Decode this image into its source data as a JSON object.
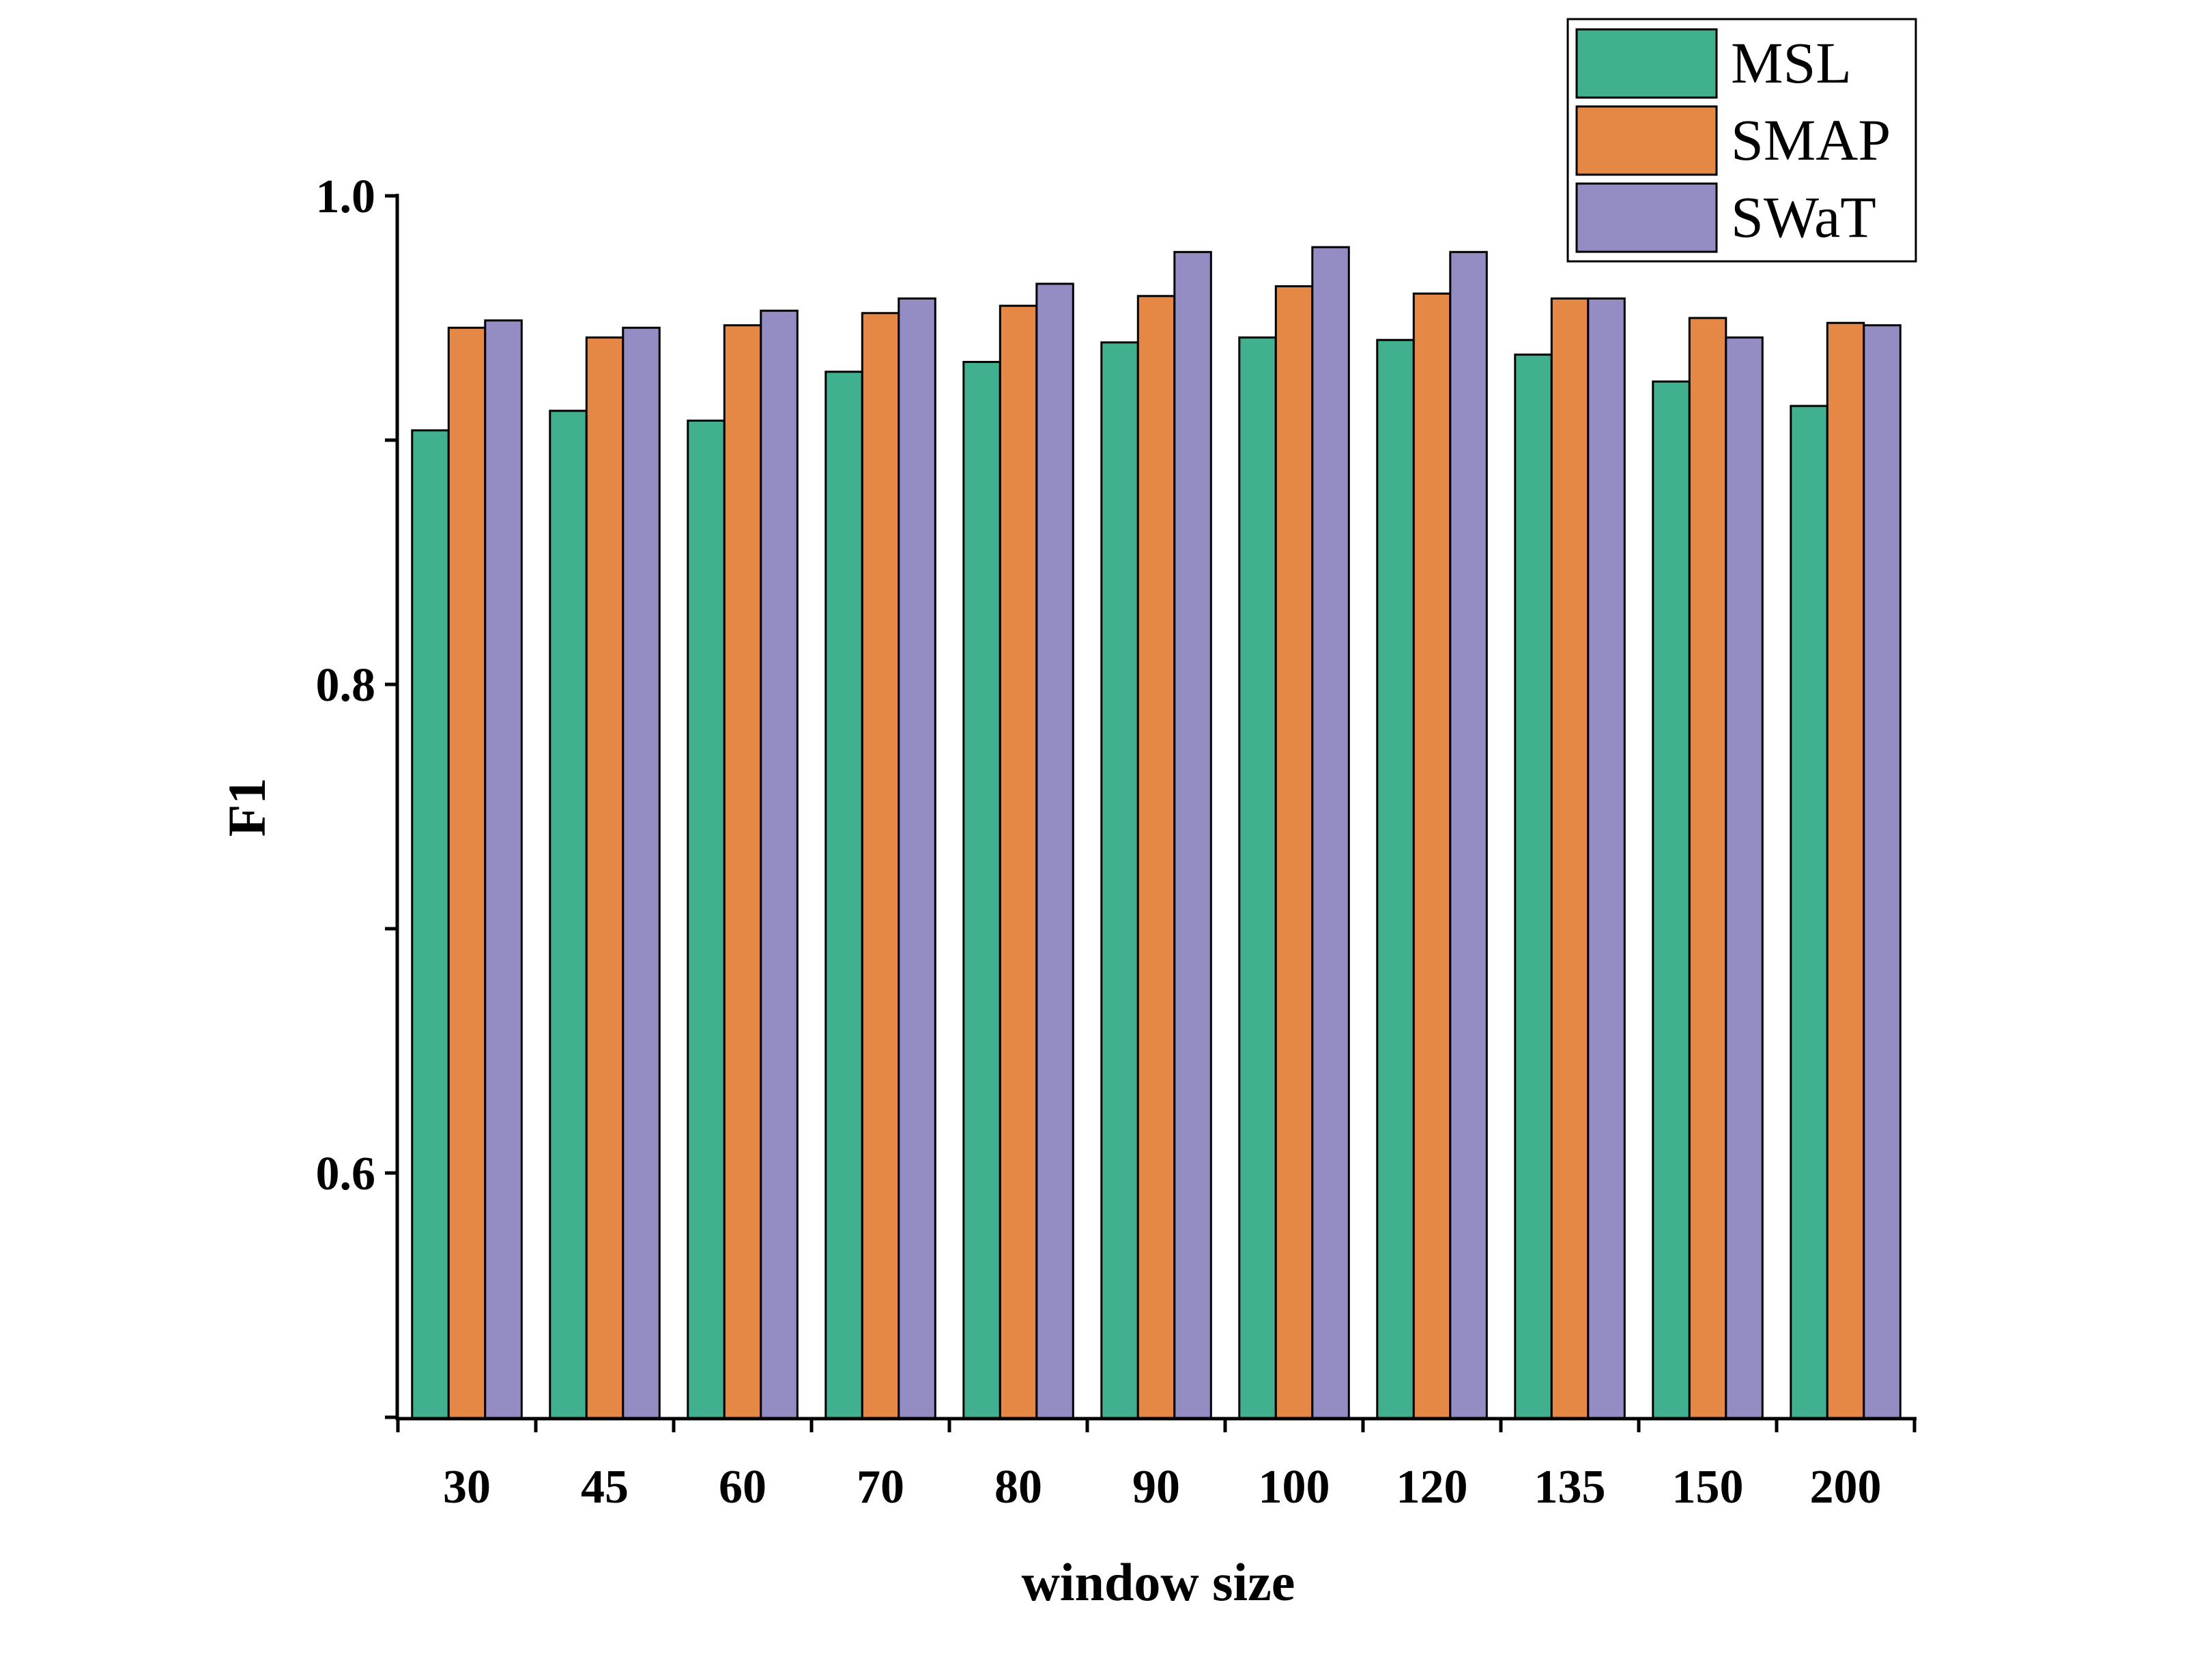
{
  "chart_data": {
    "type": "bar",
    "title": "",
    "xlabel": "window size",
    "ylabel": "F1",
    "categories": [
      "30",
      "45",
      "60",
      "70",
      "80",
      "90",
      "100",
      "120",
      "135",
      "150",
      "200"
    ],
    "series": [
      {
        "name": "MSL",
        "color": "#41B08F",
        "values": [
          0.904,
          0.912,
          0.908,
          0.928,
          0.932,
          0.94,
          0.942,
          0.941,
          0.935,
          0.924,
          0.914
        ]
      },
      {
        "name": "SMAP",
        "color": "#E58745",
        "values": [
          0.946,
          0.942,
          0.947,
          0.952,
          0.955,
          0.959,
          0.963,
          0.96,
          0.958,
          0.95,
          0.948
        ]
      },
      {
        "name": "SWaT",
        "color": "#938DC4",
        "values": [
          0.949,
          0.946,
          0.953,
          0.958,
          0.964,
          0.977,
          0.979,
          0.977,
          0.958,
          0.942,
          0.947
        ]
      }
    ],
    "ylim": [
      0.5,
      1.0
    ],
    "yticks": [
      "0.6",
      "0.8",
      "1.0"
    ],
    "ytick_values": [
      0.6,
      0.8,
      1.0
    ],
    "yminor_ticks": [
      0.5,
      0.7,
      0.9
    ],
    "grid": false,
    "legend_position": "top-right"
  }
}
